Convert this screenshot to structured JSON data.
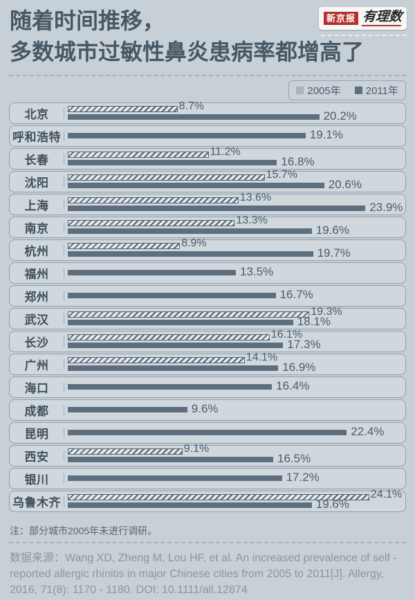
{
  "page": {
    "title_line1": "随着时间推移，",
    "title_line2": "多数城市过敏性鼻炎患病率都增高了",
    "logo": {
      "brand": "新京报",
      "column": "有理数"
    },
    "note": "注：部分城市2005年未进行调研。",
    "source_label": "数据来源：",
    "source_text": "Wang XD, Zheng M, Lou HF, et al. An increased prevalence of self - reported allergic rhinitis in major Chinese cities from 2005 to 2011[J]. Allergy, 2016, 71(8): 1170 - 1180. DOI: 10.1111/all.12874"
  },
  "legend": {
    "items": [
      {
        "label": "2005年",
        "color": "#a9b3bb"
      },
      {
        "label": "2011年",
        "color": "#5d6f7f"
      }
    ]
  },
  "colors": {
    "background": "#c7d0d7",
    "row_fill": "#d0d8de",
    "row_border": "#939ea8",
    "bar_2011": "#5d6f7f",
    "bar_2005_stripe": "#55626e",
    "bar_2005_fill": "#e2e7eb",
    "title_text": "#475764",
    "brand_red": "#b5322c"
  },
  "chart_data": {
    "type": "bar",
    "orientation": "horizontal",
    "unit": "%",
    "title": "随着时间推移，多数城市过敏性鼻炎患病率都增高了",
    "legend_position": "top-right",
    "grid": false,
    "xlim": [
      0,
      27
    ],
    "categories": [
      "北京",
      "呼和浩特",
      "长春",
      "沈阳",
      "上海",
      "南京",
      "杭州",
      "福州",
      "郑州",
      "武汉",
      "长沙",
      "广州",
      "海口",
      "成都",
      "昆明",
      "西安",
      "银川",
      "乌鲁木齐"
    ],
    "series": [
      {
        "name": "2005年",
        "values": [
          8.7,
          null,
          11.2,
          15.7,
          13.6,
          13.3,
          8.9,
          null,
          null,
          19.3,
          16.1,
          14.1,
          null,
          null,
          null,
          9.1,
          null,
          24.1
        ]
      },
      {
        "name": "2011年",
        "values": [
          20.2,
          19.1,
          16.8,
          20.6,
          23.9,
          19.6,
          19.7,
          13.5,
          16.7,
          18.1,
          17.3,
          16.9,
          16.4,
          9.6,
          22.4,
          16.5,
          17.2,
          19.6
        ]
      }
    ]
  }
}
